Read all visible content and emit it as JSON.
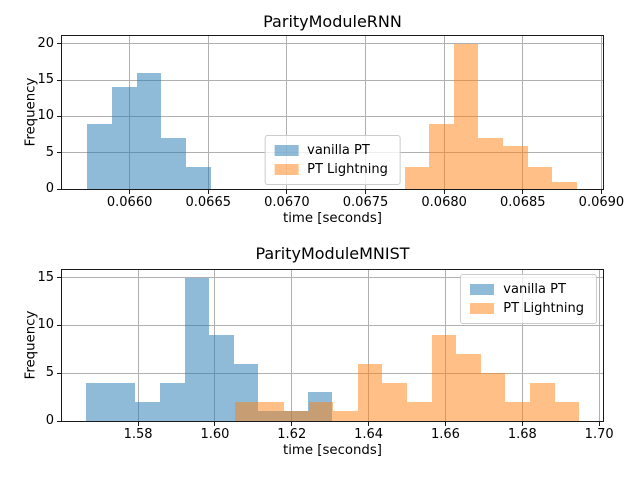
{
  "figure": {
    "background": "#ffffff"
  },
  "colors": {
    "vanilla_pt": "#1f77b4",
    "pt_lightning": "#ff7f0e",
    "fill_alpha": 0.5,
    "grid": "#b0b0b0",
    "spine": "#1a1a1a",
    "text": "#000000",
    "legend_border": "#cccccc"
  },
  "chart_data": [
    {
      "type": "histogram",
      "title": "ParityModuleRNN",
      "xlabel": "time [seconds]",
      "ylabel": "Frequency",
      "xlim": [
        0.06557,
        0.06901
      ],
      "ylim": [
        0,
        21.1
      ],
      "grid": true,
      "x_ticks": [
        0.066,
        0.0665,
        0.067,
        0.0675,
        0.068,
        0.0685,
        0.069
      ],
      "x_tick_labels": [
        "0.0660",
        "0.0665",
        "0.0670",
        "0.0675",
        "0.0680",
        "0.0685",
        "0.0690"
      ],
      "y_ticks": [
        0,
        5,
        10,
        15,
        20
      ],
      "y_tick_labels": [
        "0",
        "5",
        "10",
        "15",
        "20"
      ],
      "legend_loc": "center",
      "series": [
        {
          "name": "vanilla PT",
          "color": "#1f77b4",
          "alpha": 0.5,
          "bin_start": 0.06573,
          "bin_width": 0.000157,
          "counts": [
            9,
            14,
            16,
            7,
            3
          ]
        },
        {
          "name": "PT Lightning",
          "color": "#ff7f0e",
          "alpha": 0.5,
          "bin_start": 0.06775,
          "bin_width": 0.000156,
          "counts": [
            3,
            9,
            20,
            7,
            6,
            3,
            1
          ]
        }
      ]
    },
    {
      "type": "histogram",
      "title": "ParityModuleMNIST",
      "xlabel": "time [seconds]",
      "ylabel": "Frequency",
      "xlim": [
        1.5602,
        1.701
      ],
      "ylim": [
        0,
        15.8
      ],
      "grid": true,
      "x_ticks": [
        1.58,
        1.6,
        1.62,
        1.64,
        1.66,
        1.68,
        1.7
      ],
      "x_tick_labels": [
        "1.58",
        "1.60",
        "1.62",
        "1.64",
        "1.66",
        "1.68",
        "1.70"
      ],
      "y_ticks": [
        0,
        5,
        10,
        15
      ],
      "y_tick_labels": [
        "0",
        "5",
        "10",
        "15"
      ],
      "legend_loc": "upper right",
      "series": [
        {
          "name": "vanilla PT",
          "color": "#1f77b4",
          "alpha": 0.5,
          "bin_start": 1.5665,
          "bin_width": 0.0064,
          "counts": [
            4,
            4,
            2,
            4,
            15,
            9,
            6,
            1,
            1,
            3
          ]
        },
        {
          "name": "PT Lightning",
          "color": "#ff7f0e",
          "alpha": 0.5,
          "bin_start": 1.6052,
          "bin_width": 0.0064,
          "counts": [
            2,
            2,
            1,
            2,
            1,
            6,
            4,
            2,
            9,
            7,
            5,
            2,
            4,
            2
          ]
        }
      ]
    }
  ],
  "legend": {
    "items": [
      {
        "label": "vanilla PT",
        "color": "#1f77b4"
      },
      {
        "label": "PT Lightning",
        "color": "#ff7f0e"
      }
    ]
  }
}
